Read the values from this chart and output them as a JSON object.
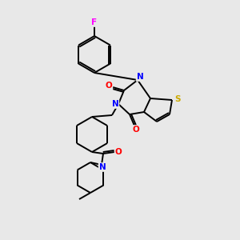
{
  "background_color": "#e8e8e8",
  "figsize": [
    3.0,
    3.0
  ],
  "dpi": 100,
  "atom_colors": {
    "C": "#000000",
    "N": "#0000ff",
    "O": "#ff0000",
    "S": "#ccaa00",
    "F": "#ff00ff"
  },
  "bond_color": "#000000",
  "bond_width": 1.4,
  "font_size_atom": 7.5
}
